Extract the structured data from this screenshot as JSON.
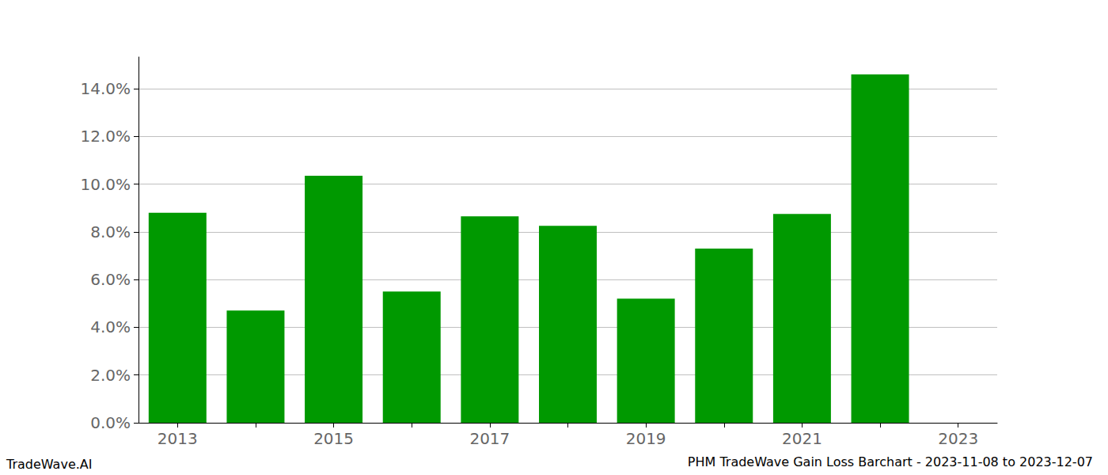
{
  "chart_data": {
    "type": "bar",
    "title": "PHM TradeWave Gain Loss Barchart - 2023-11-08 to 2023-12-07",
    "annotations": [
      "TradeWave.AI"
    ],
    "categories": [
      "2013",
      null,
      "2015",
      null,
      "2017",
      null,
      "2019",
      null,
      "2021",
      null,
      "2023"
    ],
    "values": [
      8.8,
      4.7,
      10.35,
      5.5,
      8.65,
      8.25,
      5.2,
      7.3,
      8.75,
      14.6,
      null
    ],
    "color": "#009900",
    "ylim": [
      0,
      15.33
    ],
    "yticks": [
      {
        "value": 0,
        "label": "0.0%"
      },
      {
        "value": 2,
        "label": "2.0%"
      },
      {
        "value": 4,
        "label": "4.0%"
      },
      {
        "value": 6,
        "label": "6.0%"
      },
      {
        "value": 8,
        "label": "8.0%"
      },
      {
        "value": 10,
        "label": "10.0%"
      },
      {
        "value": 12,
        "label": "12.0%"
      },
      {
        "value": 14,
        "label": "14.0%"
      }
    ],
    "grid": true
  }
}
